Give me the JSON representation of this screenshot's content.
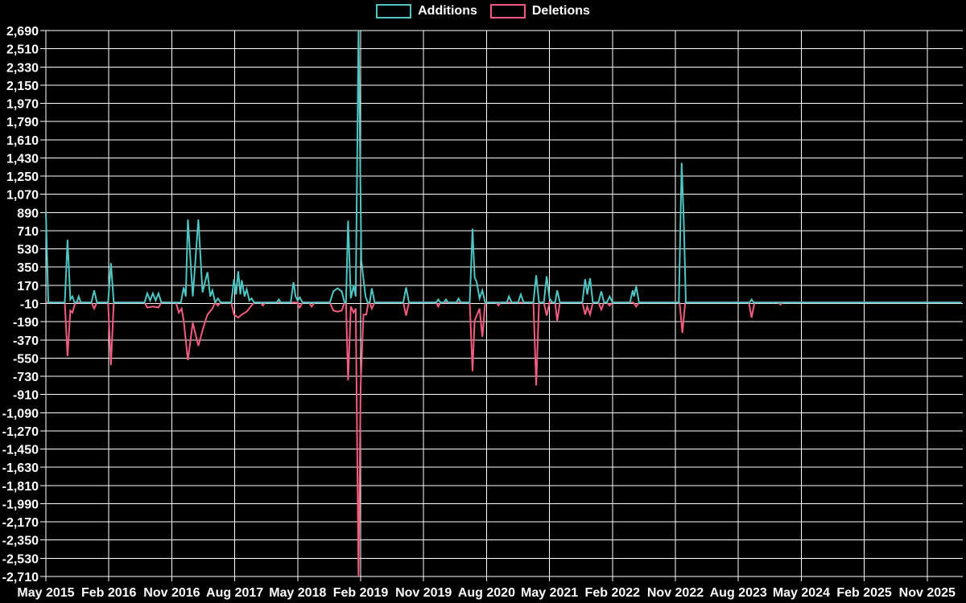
{
  "legend": {
    "series": [
      {
        "label": "Additions",
        "color": "#4dc6c4"
      },
      {
        "label": "Deletions",
        "color": "#f25c7e"
      }
    ]
  },
  "chart_data": {
    "type": "line",
    "title": "",
    "background": "#000000",
    "grid_color": "#ffffff",
    "text_color": "#ffffff",
    "legend_position": "top-center",
    "grid": true,
    "x_axis": {
      "tick_labels": [
        "May 2015",
        "Feb 2016",
        "Nov 2016",
        "Aug 2017",
        "May 2018",
        "Feb 2019",
        "Nov 2019",
        "Aug 2020",
        "May 2021",
        "Feb 2022",
        "Nov 2022",
        "Aug 2023",
        "May 2024",
        "Feb 2025",
        "Nov 2025"
      ],
      "months_per_tick": 9
    },
    "y_axis": {
      "max": 2690,
      "min": -2710,
      "tick_step": 180,
      "tick_labels": [
        "2,690",
        "2,510",
        "2,330",
        "2,150",
        "1,970",
        "1,790",
        "1,610",
        "1,430",
        "1,250",
        "1,070",
        "890",
        "710",
        "530",
        "350",
        "170",
        "-10",
        "-190",
        "-370",
        "-550",
        "-730",
        "-910",
        "-1,090",
        "-1,270",
        "-1,450",
        "-1,630",
        "-1,810",
        "-1,990",
        "-2,170",
        "-2,350",
        "-2,530",
        "-2,710"
      ]
    },
    "series": [
      {
        "name": "Additions",
        "color": "#4dc6c4",
        "points": [
          [
            0,
            890
          ],
          [
            0.35,
            0
          ],
          [
            2.7,
            0
          ],
          [
            3.1,
            620
          ],
          [
            3.5,
            30
          ],
          [
            3.8,
            60
          ],
          [
            4.1,
            0
          ],
          [
            4.4,
            0
          ],
          [
            4.7,
            60
          ],
          [
            5,
            0
          ],
          [
            6.5,
            0
          ],
          [
            6.9,
            120
          ],
          [
            7.3,
            0
          ],
          [
            8.9,
            0
          ],
          [
            9.3,
            390
          ],
          [
            9.7,
            0
          ],
          [
            14.1,
            0
          ],
          [
            14.5,
            90
          ],
          [
            14.9,
            20
          ],
          [
            15.3,
            90
          ],
          [
            15.7,
            20
          ],
          [
            16.1,
            90
          ],
          [
            16.5,
            0
          ],
          [
            19.3,
            0
          ],
          [
            19.7,
            150
          ],
          [
            20,
            60
          ],
          [
            20.3,
            820
          ],
          [
            21,
            60
          ],
          [
            21.8,
            820
          ],
          [
            22.4,
            100
          ],
          [
            23.1,
            300
          ],
          [
            23.5,
            60
          ],
          [
            23.8,
            120
          ],
          [
            24.2,
            0
          ],
          [
            24.6,
            40
          ],
          [
            25,
            0
          ],
          [
            26.5,
            0
          ],
          [
            26.9,
            230
          ],
          [
            27.2,
            80
          ],
          [
            27.5,
            310
          ],
          [
            27.8,
            80
          ],
          [
            28,
            220
          ],
          [
            28.4,
            60
          ],
          [
            28.7,
            130
          ],
          [
            29.1,
            20
          ],
          [
            29.4,
            40
          ],
          [
            29.8,
            0
          ],
          [
            33,
            0
          ],
          [
            33.3,
            30
          ],
          [
            33.6,
            0
          ],
          [
            35,
            0
          ],
          [
            35.4,
            200
          ],
          [
            35.7,
            60
          ],
          [
            36,
            20
          ],
          [
            36.3,
            50
          ],
          [
            36.7,
            0
          ],
          [
            40.6,
            0
          ],
          [
            41.1,
            110
          ],
          [
            41.7,
            140
          ],
          [
            42.3,
            110
          ],
          [
            42.7,
            0
          ],
          [
            42.9,
            0
          ],
          [
            43.2,
            810
          ],
          [
            43.6,
            40
          ],
          [
            44,
            170
          ],
          [
            44.3,
            60
          ],
          [
            44.7,
            2690
          ],
          [
            45.1,
            420
          ],
          [
            45.4,
            230
          ],
          [
            45.7,
            60
          ],
          [
            46,
            0
          ],
          [
            46.3,
            0
          ],
          [
            46.6,
            140
          ],
          [
            47,
            0
          ],
          [
            51.1,
            0
          ],
          [
            51.5,
            150
          ],
          [
            51.9,
            0
          ],
          [
            55.8,
            0
          ],
          [
            56.1,
            30
          ],
          [
            56.4,
            0
          ],
          [
            56.9,
            0
          ],
          [
            57.2,
            30
          ],
          [
            57.5,
            0
          ],
          [
            58.7,
            0
          ],
          [
            59,
            40
          ],
          [
            59.3,
            0
          ],
          [
            60.6,
            0
          ],
          [
            61,
            730
          ],
          [
            61.3,
            250
          ],
          [
            61.6,
            200
          ],
          [
            62,
            40
          ],
          [
            62.4,
            120
          ],
          [
            62.8,
            0
          ],
          [
            65.9,
            0
          ],
          [
            66.2,
            60
          ],
          [
            66.6,
            0
          ],
          [
            67.5,
            0
          ],
          [
            67.9,
            80
          ],
          [
            68.3,
            0
          ],
          [
            69.7,
            0
          ],
          [
            70.1,
            270
          ],
          [
            70.5,
            0
          ],
          [
            71.2,
            0
          ],
          [
            71.6,
            260
          ],
          [
            72,
            40
          ],
          [
            72.4,
            0
          ],
          [
            72.8,
            0
          ],
          [
            73.1,
            120
          ],
          [
            73.5,
            0
          ],
          [
            76.7,
            0
          ],
          [
            77.1,
            230
          ],
          [
            77.4,
            80
          ],
          [
            77.8,
            240
          ],
          [
            78.2,
            0
          ],
          [
            79,
            0
          ],
          [
            79.4,
            110
          ],
          [
            79.8,
            0
          ],
          [
            80.2,
            0
          ],
          [
            80.6,
            60
          ],
          [
            81,
            0
          ],
          [
            83.5,
            0
          ],
          [
            83.9,
            120
          ],
          [
            84.1,
            60
          ],
          [
            84.4,
            160
          ],
          [
            84.8,
            0
          ],
          [
            90.5,
            0
          ],
          [
            90.9,
            1380
          ],
          [
            91.2,
            810
          ],
          [
            91.5,
            0
          ],
          [
            100.6,
            0
          ],
          [
            100.9,
            30
          ],
          [
            101.2,
            0
          ],
          [
            130.9,
            0
          ]
        ]
      },
      {
        "name": "Deletions",
        "color": "#f25c7e",
        "points": [
          [
            0,
            0
          ],
          [
            2.7,
            0
          ],
          [
            3.1,
            -530
          ],
          [
            3.5,
            -80
          ],
          [
            3.8,
            -100
          ],
          [
            4.2,
            0
          ],
          [
            6.5,
            0
          ],
          [
            6.9,
            -60
          ],
          [
            7.3,
            0
          ],
          [
            8.9,
            0
          ],
          [
            9.3,
            -620
          ],
          [
            9.7,
            0
          ],
          [
            14.1,
            0
          ],
          [
            14.5,
            -50
          ],
          [
            15.3,
            -40
          ],
          [
            16.1,
            -50
          ],
          [
            16.5,
            0
          ],
          [
            18.6,
            0
          ],
          [
            19,
            -100
          ],
          [
            19.4,
            -60
          ],
          [
            19.7,
            -180
          ],
          [
            20.3,
            -570
          ],
          [
            21,
            -200
          ],
          [
            21.8,
            -430
          ],
          [
            22.5,
            -250
          ],
          [
            23.1,
            -120
          ],
          [
            23.8,
            -60
          ],
          [
            24.2,
            0
          ],
          [
            24.6,
            -30
          ],
          [
            25,
            0
          ],
          [
            26.5,
            0
          ],
          [
            26.9,
            -120
          ],
          [
            27.5,
            -150
          ],
          [
            28,
            -120
          ],
          [
            28.7,
            -90
          ],
          [
            29.4,
            -30
          ],
          [
            29.8,
            0
          ],
          [
            30.7,
            0
          ],
          [
            31,
            -30
          ],
          [
            31.4,
            0
          ],
          [
            35.9,
            0
          ],
          [
            36.3,
            -50
          ],
          [
            36.7,
            0
          ],
          [
            37.6,
            0
          ],
          [
            38,
            -40
          ],
          [
            38.4,
            0
          ],
          [
            40.6,
            0
          ],
          [
            41.1,
            -80
          ],
          [
            41.7,
            -90
          ],
          [
            42.3,
            -80
          ],
          [
            42.7,
            0
          ],
          [
            42.9,
            0
          ],
          [
            43.2,
            -770
          ],
          [
            43.6,
            -40
          ],
          [
            44,
            -100
          ],
          [
            44.3,
            -60
          ],
          [
            44.7,
            -2710
          ],
          [
            45,
            -830
          ],
          [
            45.4,
            -120
          ],
          [
            45.8,
            -120
          ],
          [
            46.1,
            0
          ],
          [
            46.3,
            0
          ],
          [
            46.6,
            -60
          ],
          [
            47,
            0
          ],
          [
            51.1,
            0
          ],
          [
            51.5,
            -130
          ],
          [
            51.9,
            0
          ],
          [
            55.8,
            0
          ],
          [
            56.1,
            -40
          ],
          [
            56.4,
            0
          ],
          [
            60.6,
            0
          ],
          [
            61,
            -680
          ],
          [
            61.3,
            -180
          ],
          [
            62,
            -60
          ],
          [
            62.4,
            -340
          ],
          [
            62.8,
            0
          ],
          [
            64.4,
            0
          ],
          [
            64.7,
            -30
          ],
          [
            65,
            0
          ],
          [
            69.7,
            0
          ],
          [
            70.1,
            -820
          ],
          [
            70.5,
            0
          ],
          [
            71.2,
            0
          ],
          [
            71.6,
            -130
          ],
          [
            72,
            0
          ],
          [
            72.8,
            0
          ],
          [
            73.1,
            -180
          ],
          [
            73.5,
            0
          ],
          [
            76.7,
            0
          ],
          [
            77.1,
            -120
          ],
          [
            77.4,
            -40
          ],
          [
            77.8,
            -120
          ],
          [
            78.2,
            0
          ],
          [
            79,
            0
          ],
          [
            79.4,
            -70
          ],
          [
            79.8,
            0
          ],
          [
            80.2,
            0
          ],
          [
            80.6,
            -30
          ],
          [
            81,
            0
          ],
          [
            84,
            0
          ],
          [
            84.4,
            -40
          ],
          [
            84.8,
            0
          ],
          [
            90.6,
            0
          ],
          [
            91,
            -300
          ],
          [
            91.4,
            0
          ],
          [
            100.5,
            0
          ],
          [
            100.9,
            -150
          ],
          [
            101.3,
            0
          ],
          [
            104.7,
            0
          ],
          [
            105,
            -20
          ],
          [
            105.3,
            0
          ],
          [
            130.9,
            0
          ]
        ]
      }
    ]
  }
}
